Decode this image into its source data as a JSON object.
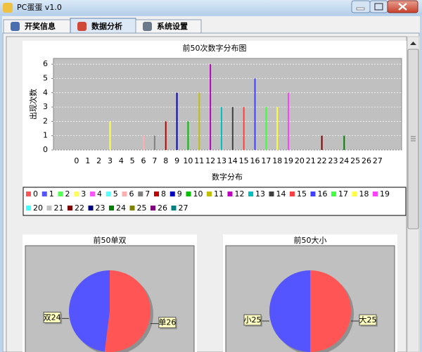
{
  "window": {
    "title": "PC蛋蛋 v1.0"
  },
  "tabs": [
    "开奖信息",
    "数据分析",
    "系统设置"
  ],
  "chart_data": [
    {
      "type": "bar",
      "title": "前50次数字分布图",
      "x_label": "数字分布",
      "y_label": "出现次数",
      "categories": [
        "0",
        "1",
        "2",
        "3",
        "4",
        "5",
        "6",
        "7",
        "8",
        "9",
        "10",
        "11",
        "12",
        "13",
        "14",
        "15",
        "16",
        "17",
        "18",
        "19",
        "20",
        "21",
        "22",
        "23",
        "24",
        "25",
        "26",
        "27"
      ],
      "values": [
        0,
        0,
        0,
        2,
        0,
        0,
        1,
        1,
        2,
        4,
        2,
        4,
        6,
        3,
        3,
        3,
        5,
        3,
        3,
        4,
        0,
        2,
        1,
        0,
        1,
        0,
        0,
        0
      ],
      "colors": [
        "#ff5555",
        "#5555ff",
        "#55ff55",
        "#ffff55",
        "#ff55ff",
        "#55ffff",
        "#ffafaf",
        "#808080",
        "#c00000",
        "#0000c0",
        "#00c000",
        "#c0c000",
        "#c000c0",
        "#00c0c0",
        "#404040",
        "#ff4040",
        "#4040ff",
        "#40ff40",
        "#ffff40",
        "#ff40ff",
        "#40ffff",
        "#c0c0c0",
        "#800000",
        "#000080",
        "#008000",
        "#808000",
        "#800080",
        "#008080"
      ],
      "ylim": [
        0,
        6.4
      ],
      "yticks": [
        0,
        1,
        2,
        3,
        4,
        5,
        6
      ],
      "grid": true
    },
    {
      "type": "pie",
      "title": "前50单双",
      "categories": [
        "单",
        "双"
      ],
      "values": [
        26,
        24
      ],
      "value_labels": [
        "单26",
        "双24"
      ],
      "colors": [
        "#ff5555",
        "#5555ff"
      ]
    },
    {
      "type": "pie",
      "title": "前50大小",
      "categories": [
        "大",
        "小"
      ],
      "values": [
        25,
        25
      ],
      "value_labels": [
        "大25",
        "小25"
      ],
      "colors": [
        "#ff5555",
        "#5555ff"
      ]
    }
  ]
}
